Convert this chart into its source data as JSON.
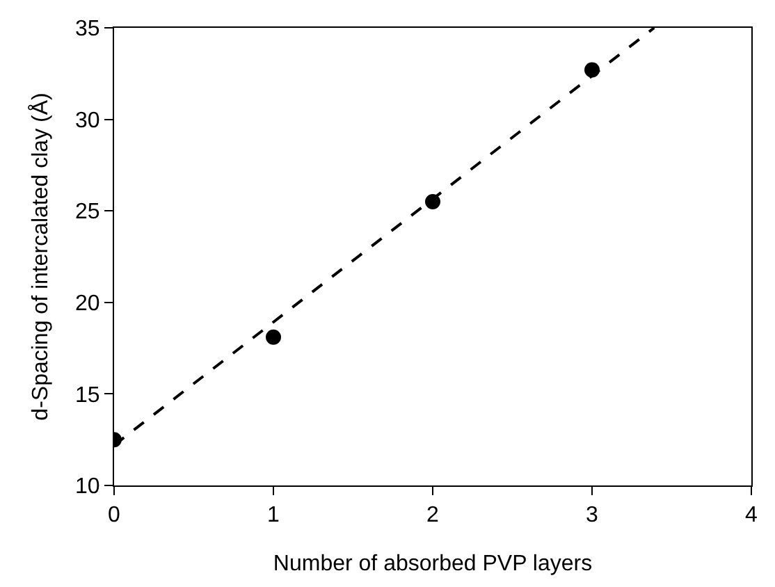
{
  "chart_data": {
    "type": "scatter",
    "xlabel": "Number of absorbed PVP layers",
    "ylabel": "d-Spacing of intercalated clay (Å)",
    "xlim": [
      0,
      4
    ],
    "xticks": [
      0,
      1,
      2,
      3,
      4
    ],
    "ylim": [
      10,
      35
    ],
    "yticks": [
      10,
      15,
      20,
      25,
      30,
      35
    ],
    "series": [
      {
        "x": [
          0,
          1,
          2,
          3
        ],
        "values": [
          12.5,
          18.1,
          25.5,
          32.7
        ],
        "color": "#000000",
        "marker": "circle"
      },
      {
        "type": "line",
        "x": [
          0,
          3.39
        ],
        "values": [
          12.2,
          35
        ],
        "color": "#000000",
        "line_style": "dashed",
        "marker": "none"
      }
    ]
  }
}
